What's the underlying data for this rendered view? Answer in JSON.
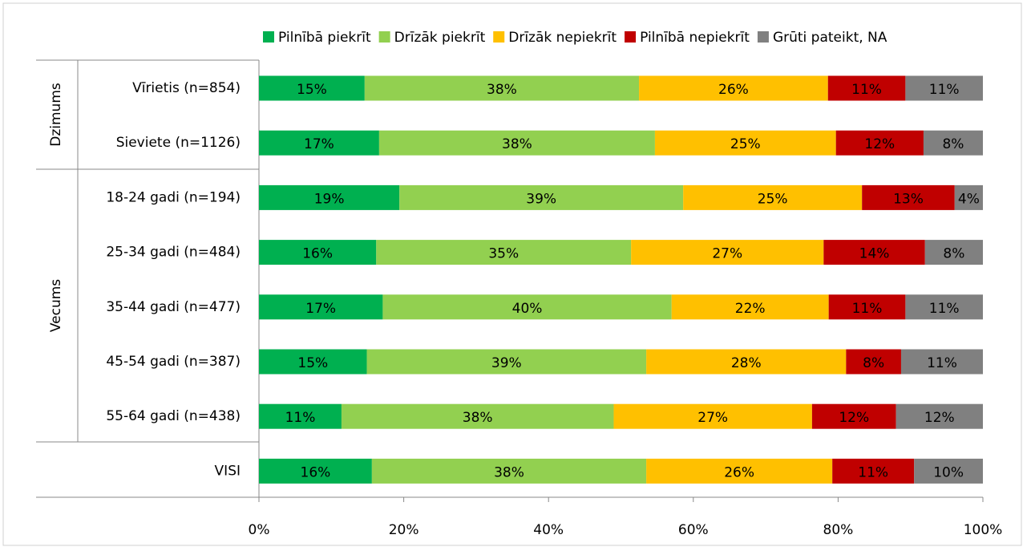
{
  "chart_data": {
    "type": "stacked_bar_horizontal",
    "categories": [
      "Vīrietis (n=854)",
      "Sieviete (n=1126)",
      "18-24 gadi (n=194)",
      "25-34 gadi (n=484)",
      "35-44 gadi (n=477)",
      "45-54 gadi (n=387)",
      "55-64 gadi (n=438)",
      "VISI"
    ],
    "groups": [
      "Dzimums",
      "Vecums"
    ],
    "series": [
      {
        "name": "Pilnībā piekrīt",
        "color": "#00b050",
        "values": [
          14.6,
          16.6,
          19.4,
          16.2,
          17.1,
          14.9,
          11.4,
          15.6
        ],
        "value_labels": [
          "15%",
          "17%",
          "19%",
          "16%",
          "17%",
          "15%",
          "11%",
          "16%"
        ]
      },
      {
        "name": "Drīzāk piekrīt",
        "color": "#92d050",
        "values": [
          37.9,
          38.1,
          39.2,
          35.2,
          39.9,
          38.6,
          37.6,
          37.9
        ],
        "value_labels": [
          "38%",
          "38%",
          "39%",
          "35%",
          "40%",
          "39%",
          "38%",
          "38%"
        ]
      },
      {
        "name": "Drīzāk nepiekrīt",
        "color": "#ffc000",
        "values": [
          26.1,
          25.0,
          24.7,
          26.6,
          21.7,
          27.6,
          27.4,
          25.7
        ],
        "value_labels": [
          "26%",
          "25%",
          "25%",
          "27%",
          "22%",
          "28%",
          "27%",
          "26%"
        ]
      },
      {
        "name": "Pilnībā nepiekrīt",
        "color": "#c00000",
        "values": [
          10.7,
          12.1,
          12.8,
          14.0,
          10.6,
          7.6,
          11.6,
          11.3
        ],
        "value_labels": [
          "11%",
          "12%",
          "13%",
          "14%",
          "11%",
          "8%",
          "12%",
          "11%"
        ]
      },
      {
        "name": "Grūti pateikt, NA",
        "color": "#808080",
        "values": [
          10.7,
          8.2,
          3.9,
          8.0,
          10.7,
          11.3,
          12.0,
          9.5
        ],
        "value_labels": [
          "11%",
          "8%",
          "4%",
          "8%",
          "11%",
          "11%",
          "12%",
          "10%"
        ]
      }
    ],
    "xlim": [
      0,
      100
    ],
    "xticks": [
      {
        "value": 0,
        "label": "0%"
      },
      {
        "value": 20,
        "label": "20%"
      },
      {
        "value": 40,
        "label": "40%"
      },
      {
        "value": 60,
        "label": "60%"
      },
      {
        "value": 80,
        "label": "80%"
      },
      {
        "value": 100,
        "label": "100%"
      }
    ]
  }
}
